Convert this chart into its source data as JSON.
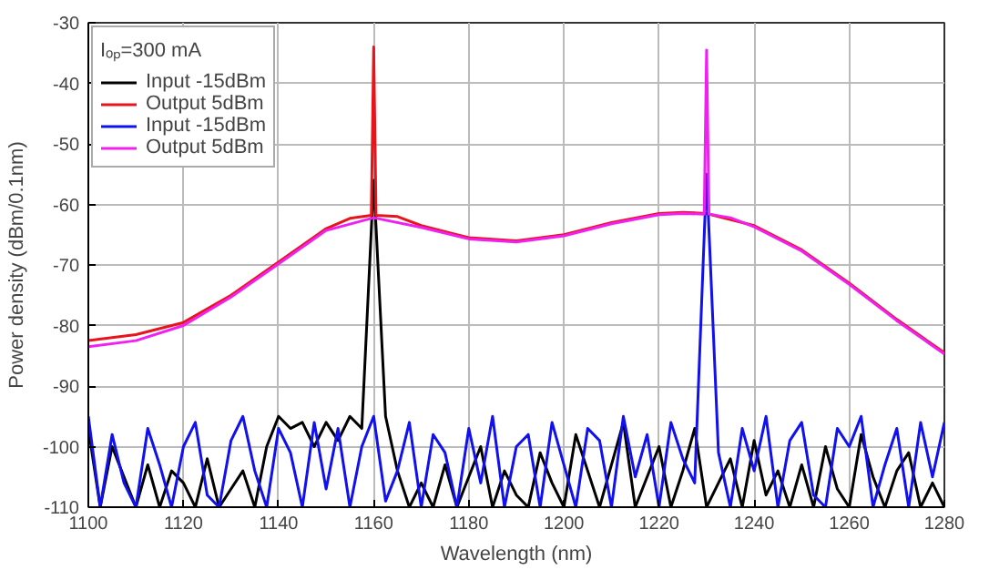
{
  "chart_data": {
    "type": "line",
    "xlabel": "Wavelength (nm)",
    "ylabel": "Power density (dBm/0.1nm)",
    "legend_title": "Iₒₚ=300 mA",
    "xlim": [
      1100,
      1280
    ],
    "ylim": [
      -110,
      -30
    ],
    "xticks": [
      1100,
      1120,
      1140,
      1160,
      1180,
      1200,
      1220,
      1240,
      1260,
      1280
    ],
    "yticks": [
      -110,
      -100,
      -90,
      -80,
      -70,
      -60,
      -50,
      -40,
      -30
    ],
    "grid": true,
    "legend": "top left",
    "marker": "none",
    "line_style": "solid",
    "series": [
      {
        "name": "Input -15dBm",
        "color": "#000000",
        "x": [
          1100,
          1102.5,
          1105,
          1107.5,
          1110,
          1112.5,
          1115,
          1117.5,
          1120,
          1122.5,
          1125,
          1127.5,
          1130,
          1132.5,
          1135,
          1137.5,
          1140,
          1142.5,
          1145,
          1147.5,
          1150,
          1152.5,
          1155,
          1157.5,
          1160,
          1162.5,
          1165,
          1167.5,
          1170,
          1172.5,
          1175,
          1177.5,
          1180,
          1182.5,
          1185,
          1187.5,
          1190,
          1192.5,
          1195,
          1197.5,
          1200,
          1202.5,
          1205,
          1207.5,
          1210,
          1212.5,
          1215,
          1217.5,
          1220,
          1222.5,
          1225,
          1227.5,
          1230,
          1232.5,
          1235,
          1237.5,
          1240,
          1242.5,
          1245,
          1247.5,
          1250,
          1252.5,
          1255,
          1257.5,
          1260,
          1262.5,
          1265,
          1267.5,
          1270,
          1272.5,
          1275,
          1277.5,
          1280
        ],
        "values": [
          -97,
          -110,
          -100,
          -105,
          -110,
          -103,
          -110,
          -104,
          -106,
          -110,
          -102,
          -110,
          -107,
          -104,
          -110,
          -100,
          -95,
          -97,
          -96,
          -100,
          -96,
          -99,
          -95,
          -97,
          -56,
          -95,
          -104,
          -110,
          -106,
          -110,
          -103,
          -110,
          -105,
          -100,
          -110,
          -104,
          -108,
          -110,
          -101,
          -106,
          -110,
          -98,
          -104,
          -110,
          -103,
          -96,
          -110,
          -105,
          -100,
          -110,
          -104,
          -97,
          -110,
          -106,
          -102,
          -110,
          -99,
          -108,
          -104,
          -110,
          -103,
          -110,
          -100,
          -107,
          -110,
          -98,
          -105,
          -110,
          -104,
          -101,
          -110,
          -106,
          -110
        ]
      },
      {
        "name": "Output 5dBm",
        "color": "#e8141b",
        "x": [
          1100,
          1110,
          1120,
          1130,
          1140,
          1150,
          1155,
          1159.5,
          1160,
          1160.5,
          1165,
          1170,
          1180,
          1190,
          1200,
          1210,
          1220,
          1225,
          1230,
          1240,
          1250,
          1260,
          1270,
          1280
        ],
        "values": [
          -82.5,
          -81.5,
          -79.5,
          -75,
          -69.5,
          -64,
          -62.3,
          -61.8,
          -34,
          -61.8,
          -62,
          -63.5,
          -65.5,
          -66,
          -65,
          -63,
          -61.5,
          -61.3,
          -61.5,
          -63.5,
          -67.5,
          -73,
          -79,
          -84.5
        ]
      },
      {
        "name": "Input -15dBm",
        "color": "#1010f0",
        "x": [
          1100,
          1102.5,
          1105,
          1107.5,
          1110,
          1112.5,
          1115,
          1117.5,
          1120,
          1122.5,
          1125,
          1127.5,
          1130,
          1132.5,
          1135,
          1137.5,
          1140,
          1142.5,
          1145,
          1147.5,
          1150,
          1152.5,
          1155,
          1157.5,
          1160,
          1162.5,
          1165,
          1167.5,
          1170,
          1172.5,
          1175,
          1177.5,
          1180,
          1182.5,
          1185,
          1187.5,
          1190,
          1192.5,
          1195,
          1197.5,
          1200,
          1202.5,
          1205,
          1207.5,
          1210,
          1212.5,
          1215,
          1217.5,
          1220,
          1222.5,
          1225,
          1227.5,
          1230,
          1232.5,
          1235,
          1237.5,
          1240,
          1242.5,
          1245,
          1247.5,
          1250,
          1252.5,
          1255,
          1257.5,
          1260,
          1262.5,
          1265,
          1267.5,
          1270,
          1272.5,
          1275,
          1277.5,
          1280
        ],
        "values": [
          -95,
          -110,
          -98,
          -106,
          -110,
          -97,
          -103,
          -110,
          -100,
          -96,
          -108,
          -110,
          -99,
          -95,
          -104,
          -110,
          -97,
          -101,
          -110,
          -96,
          -107,
          -97,
          -110,
          -100,
          -95,
          -109,
          -104,
          -96,
          -110,
          -98,
          -101,
          -110,
          -97,
          -106,
          -95,
          -110,
          -100,
          -98,
          -110,
          -96,
          -103,
          -110,
          -97,
          -99,
          -110,
          -95,
          -105,
          -98,
          -110,
          -96,
          -102,
          -106,
          -55,
          -101,
          -110,
          -97,
          -104,
          -95,
          -110,
          -99,
          -96,
          -108,
          -110,
          -97,
          -100,
          -95,
          -110,
          -103,
          -97,
          -110,
          -96,
          -105,
          -96
        ]
      },
      {
        "name": "Output 5dBm",
        "color": "#f020f0",
        "x": [
          1100,
          1110,
          1120,
          1130,
          1140,
          1150,
          1160,
          1170,
          1180,
          1190,
          1200,
          1210,
          1220,
          1225,
          1229.5,
          1230,
          1230.5,
          1235,
          1240,
          1250,
          1260,
          1270,
          1280
        ],
        "values": [
          -83.5,
          -82.5,
          -80,
          -75.3,
          -69.8,
          -64.3,
          -62.2,
          -63.8,
          -65.7,
          -66.2,
          -65.2,
          -63.2,
          -61.7,
          -61.5,
          -61.6,
          -34.5,
          -61.6,
          -62.2,
          -63.7,
          -67.7,
          -73.2,
          -79.2,
          -84.7
        ]
      }
    ]
  }
}
